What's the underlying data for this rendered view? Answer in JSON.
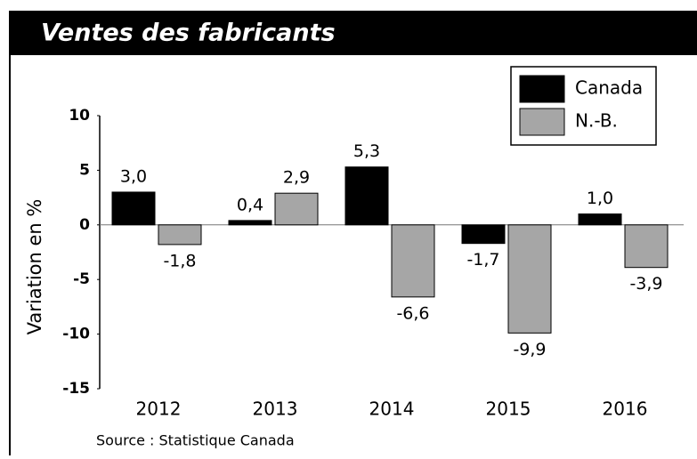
{
  "chart_data": {
    "type": "bar",
    "title": "Ventes des fabricants",
    "y_label": "Variation en %",
    "source": "Source : Statistique Canada",
    "categories": [
      "2012",
      "2013",
      "2014",
      "2015",
      "2016"
    ],
    "series": [
      {
        "name": "Canada",
        "color": "#000000",
        "values": [
          3.0,
          0.4,
          5.3,
          -1.7,
          1.0
        ],
        "value_labels": [
          "3,0",
          "0,4",
          "5,3",
          "-1,7",
          "1,0"
        ]
      },
      {
        "name": "N.-B.",
        "color": "#a6a6a6",
        "values": [
          -1.8,
          2.9,
          -6.6,
          -9.9,
          -3.9
        ],
        "value_labels": [
          "-1,8",
          "2,9",
          "-6,6",
          "-9,9",
          "-3,9"
        ]
      }
    ],
    "ylim": [
      -15,
      10
    ],
    "yticks": [
      10,
      5,
      0,
      -5,
      -10,
      -15
    ],
    "legend": "top-right"
  }
}
